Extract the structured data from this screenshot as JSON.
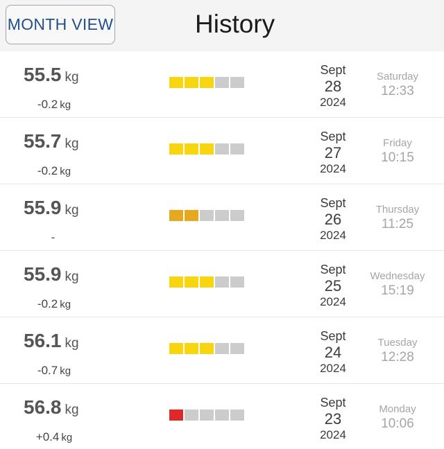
{
  "header": {
    "month_view_label": "MONTH VIEW",
    "title": "History"
  },
  "colors": {
    "yellow": "#f7d60f",
    "orange": "#e6a81e",
    "red": "#e0282a",
    "empty": "#cccccc"
  },
  "entries": [
    {
      "weight": "55.5",
      "weight_unit": "kg",
      "delta": "-0.2",
      "delta_unit": "kg",
      "rating": {
        "filled": 3,
        "of": 5,
        "color": "yellow"
      },
      "month": "Sept",
      "day": "28",
      "year": "2024",
      "weekday": "Saturday",
      "time": "12:33"
    },
    {
      "weight": "55.7",
      "weight_unit": "kg",
      "delta": "-0.2",
      "delta_unit": "kg",
      "rating": {
        "filled": 3,
        "of": 5,
        "color": "yellow"
      },
      "month": "Sept",
      "day": "27",
      "year": "2024",
      "weekday": "Friday",
      "time": "10:15"
    },
    {
      "weight": "55.9",
      "weight_unit": "kg",
      "delta": "-",
      "delta_unit": "",
      "rating": {
        "filled": 2,
        "of": 5,
        "color": "orange"
      },
      "month": "Sept",
      "day": "26",
      "year": "2024",
      "weekday": "Thursday",
      "time": "11:25"
    },
    {
      "weight": "55.9",
      "weight_unit": "kg",
      "delta": "-0.2",
      "delta_unit": "kg",
      "rating": {
        "filled": 3,
        "of": 5,
        "color": "yellow"
      },
      "month": "Sept",
      "day": "25",
      "year": "2024",
      "weekday": "Wednesday",
      "time": "15:19"
    },
    {
      "weight": "56.1",
      "weight_unit": "kg",
      "delta": "-0.7",
      "delta_unit": "kg",
      "rating": {
        "filled": 3,
        "of": 5,
        "color": "yellow"
      },
      "month": "Sept",
      "day": "24",
      "year": "2024",
      "weekday": "Tuesday",
      "time": "12:28"
    },
    {
      "weight": "56.8",
      "weight_unit": "kg",
      "delta": "+0.4",
      "delta_unit": "kg",
      "rating": {
        "filled": 1,
        "of": 5,
        "color": "red"
      },
      "month": "Sept",
      "day": "23",
      "year": "2024",
      "weekday": "Monday",
      "time": "10:06"
    }
  ]
}
